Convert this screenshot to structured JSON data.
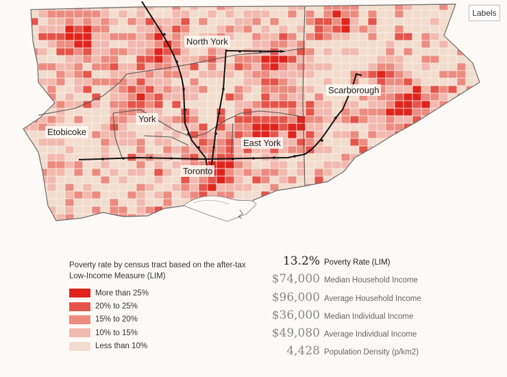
{
  "controls": {
    "labels_button": "Labels"
  },
  "districts": {
    "north_york": "North York",
    "scarborough": "Scarborough",
    "etobicoke": "Etobicoke",
    "york": "York",
    "east_york": "East York",
    "toronto": "Toronto"
  },
  "legend": {
    "title": "Poverty rate by census tract based on the after-tax Low-Income Measure (LIM)",
    "items": [
      {
        "label": "More than 25%",
        "color": "#e0241c"
      },
      {
        "label": "20% to 25%",
        "color": "#e5544a"
      },
      {
        "label": "15% to 20%",
        "color": "#ec8c80"
      },
      {
        "label": "10% to 15%",
        "color": "#f2b9ae"
      },
      {
        "label": "Less than 10%",
        "color": "#f2dccd"
      }
    ]
  },
  "stats": [
    {
      "value": "13.2%",
      "label": "Poverty Rate (LIM)"
    },
    {
      "value": "$74,000",
      "label": "Median Household Income"
    },
    {
      "value": "$96,000",
      "label": "Average Household Income"
    },
    {
      "value": "$36,000",
      "label": "Median Individual Income"
    },
    {
      "value": "$49,080",
      "label": "Average Individual Income"
    },
    {
      "value": "4,428",
      "label": "Population Density (p/km2)"
    }
  ],
  "colors": {
    "lake": "#fdf9f6",
    "boundary": "#555555",
    "transit": "#111111"
  }
}
